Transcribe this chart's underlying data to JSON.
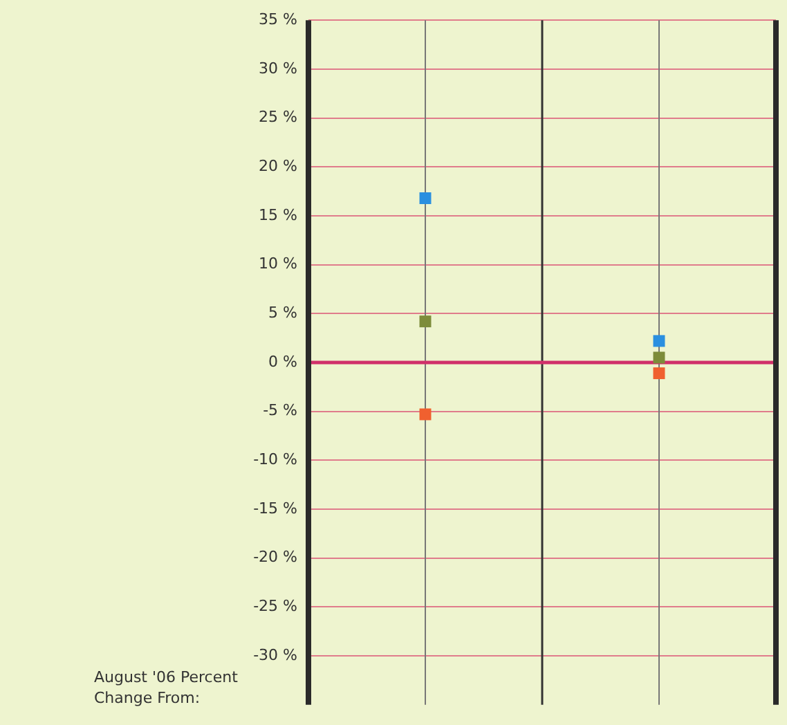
{
  "chart_data": {
    "type": "scatter",
    "categories": [
      null,
      null
    ],
    "series": [
      {
        "color": "#2a8fe0",
        "values": [
          16.8,
          2.2
        ]
      },
      {
        "color": "#7d8c3a",
        "values": [
          4.2,
          0.5
        ]
      },
      {
        "color": "#f0602f",
        "values": [
          -5.3,
          -1.1
        ]
      }
    ],
    "ylim": [
      -35,
      35
    ],
    "yticks": [
      {
        "value": 35,
        "label": "35 %"
      },
      {
        "value": 30,
        "label": "30 %"
      },
      {
        "value": 25,
        "label": "25 %"
      },
      {
        "value": 20,
        "label": "20 %"
      },
      {
        "value": 15,
        "label": "15 %"
      },
      {
        "value": 10,
        "label": "10 %"
      },
      {
        "value": 5,
        "label": "5 %"
      },
      {
        "value": 0,
        "label": "0 %"
      },
      {
        "value": -5,
        "label": "-5 %"
      },
      {
        "value": -10,
        "label": "-10 %"
      },
      {
        "value": -15,
        "label": "-15 %"
      },
      {
        "value": -20,
        "label": "-20 %"
      },
      {
        "value": -25,
        "label": "-25 %"
      },
      {
        "value": -30,
        "label": "-30 %"
      }
    ],
    "ref_lines": [
      {
        "axis": "y",
        "value": 0,
        "color": "#d0306a"
      }
    ],
    "grid": true,
    "marker": "square",
    "legend": false,
    "annotations": [
      "August '06 Percent Change From:"
    ]
  }
}
